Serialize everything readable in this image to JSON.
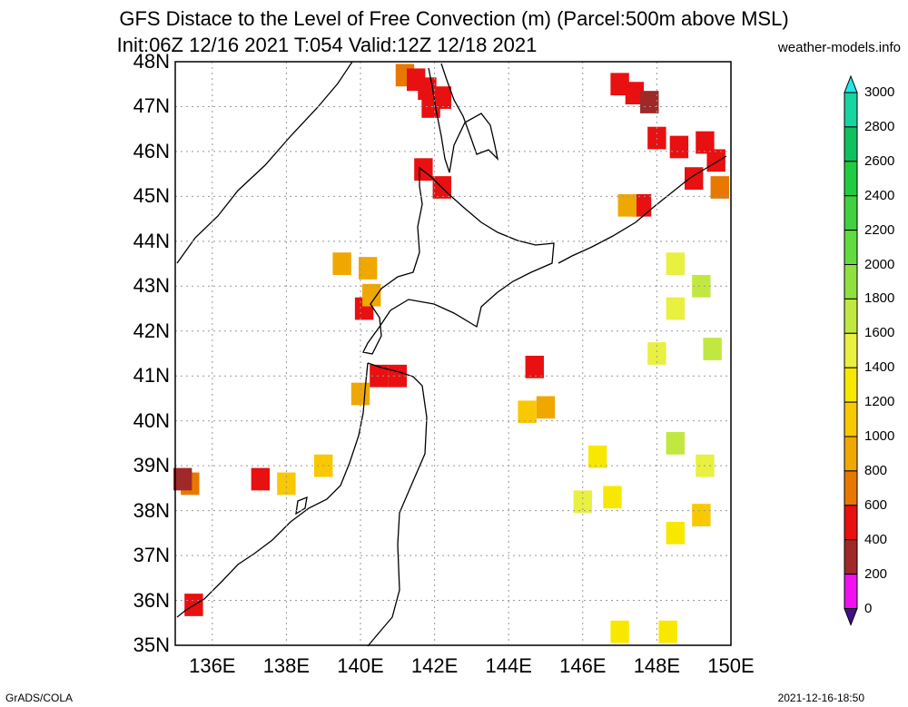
{
  "title_line1": "GFS Distace to the Level of Free Convection (m) (Parcel:500m above MSL)",
  "title_line2": "Init:06Z 12/16 2021 T:054 Valid:12Z 12/18 2021",
  "site": "weather-models.info",
  "footer_left": "GrADS/COLA",
  "footer_right": "2021-12-16-18:50",
  "lat_labels": [
    "48N",
    "47N",
    "46N",
    "45N",
    "44N",
    "43N",
    "42N",
    "41N",
    "40N",
    "39N",
    "38N",
    "37N",
    "36N",
    "35N"
  ],
  "lon_labels": [
    "136E",
    "138E",
    "140E",
    "142E",
    "144E",
    "146E",
    "148E",
    "150E"
  ],
  "colorbar": {
    "levels": [
      "3000",
      "2800",
      "2600",
      "2400",
      "2200",
      "2000",
      "1800",
      "1600",
      "1400",
      "1200",
      "1000",
      "800",
      "600",
      "400",
      "200",
      "0"
    ],
    "colors": [
      "#20e8e8",
      "#18d4a0",
      "#10c060",
      "#20cc40",
      "#40d040",
      "#60dc40",
      "#90e040",
      "#c0e840",
      "#e8f040",
      "#f8e800",
      "#f8c800",
      "#f0a800",
      "#e87800",
      "#e81010",
      "#a02828",
      "#f010f0",
      "#401088"
    ]
  },
  "map_data": {
    "lat_range": [
      35,
      48
    ],
    "lon_range": [
      135,
      150
    ],
    "fields": [
      {
        "lon": 141.2,
        "lat": 47.7,
        "v": 700
      },
      {
        "lon": 141.5,
        "lat": 47.6,
        "v": 500
      },
      {
        "lon": 141.8,
        "lat": 47.4,
        "v": 550
      },
      {
        "lon": 141.9,
        "lat": 47.0,
        "v": 560
      },
      {
        "lon": 142.2,
        "lat": 47.2,
        "v": 400
      },
      {
        "lon": 147.0,
        "lat": 47.5,
        "v": 400
      },
      {
        "lon": 147.4,
        "lat": 47.3,
        "v": 400
      },
      {
        "lon": 147.8,
        "lat": 47.1,
        "v": 200
      },
      {
        "lon": 148.0,
        "lat": 46.3,
        "v": 550
      },
      {
        "lon": 148.6,
        "lat": 46.1,
        "v": 550
      },
      {
        "lon": 149.3,
        "lat": 46.2,
        "v": 400
      },
      {
        "lon": 149.6,
        "lat": 45.8,
        "v": 550
      },
      {
        "lon": 149.7,
        "lat": 45.2,
        "v": 700
      },
      {
        "lon": 149.0,
        "lat": 45.4,
        "v": 550
      },
      {
        "lon": 141.7,
        "lat": 45.6,
        "v": 550
      },
      {
        "lon": 142.2,
        "lat": 45.2,
        "v": 550
      },
      {
        "lon": 140.1,
        "lat": 42.5,
        "v": 560
      },
      {
        "lon": 140.3,
        "lat": 42.8,
        "v": 800
      },
      {
        "lon": 139.5,
        "lat": 43.5,
        "v": 900
      },
      {
        "lon": 140.2,
        "lat": 43.4,
        "v": 850
      },
      {
        "lon": 140.5,
        "lat": 41.0,
        "v": 550
      },
      {
        "lon": 141.0,
        "lat": 41.0,
        "v": 550
      },
      {
        "lon": 147.6,
        "lat": 44.8,
        "v": 550
      },
      {
        "lon": 147.2,
        "lat": 44.8,
        "v": 900
      },
      {
        "lon": 148.5,
        "lat": 43.5,
        "v": 1500
      },
      {
        "lon": 149.2,
        "lat": 43.0,
        "v": 1600
      },
      {
        "lon": 148.5,
        "lat": 42.5,
        "v": 1550
      },
      {
        "lon": 149.5,
        "lat": 41.6,
        "v": 1600
      },
      {
        "lon": 148.0,
        "lat": 41.5,
        "v": 1500
      },
      {
        "lon": 148.5,
        "lat": 39.5,
        "v": 1600
      },
      {
        "lon": 149.3,
        "lat": 39.0,
        "v": 1550
      },
      {
        "lon": 145.0,
        "lat": 40.3,
        "v": 950
      },
      {
        "lon": 144.5,
        "lat": 40.2,
        "v": 1000
      },
      {
        "lon": 144.7,
        "lat": 41.2,
        "v": 550
      },
      {
        "lon": 140.0,
        "lat": 40.6,
        "v": 900
      },
      {
        "lon": 139.0,
        "lat": 39.0,
        "v": 1000
      },
      {
        "lon": 138.0,
        "lat": 38.6,
        "v": 1100
      },
      {
        "lon": 137.3,
        "lat": 38.7,
        "v": 550
      },
      {
        "lon": 135.4,
        "lat": 38.6,
        "v": 700
      },
      {
        "lon": 135.2,
        "lat": 38.7,
        "v": 200
      },
      {
        "lon": 135.5,
        "lat": 35.9,
        "v": 550
      },
      {
        "lon": 146.8,
        "lat": 38.3,
        "v": 1300
      },
      {
        "lon": 148.5,
        "lat": 37.5,
        "v": 1250
      },
      {
        "lon": 149.2,
        "lat": 37.9,
        "v": 1100
      },
      {
        "lon": 148.3,
        "lat": 35.3,
        "v": 1300
      },
      {
        "lon": 147.0,
        "lat": 35.3,
        "v": 1200
      },
      {
        "lon": 146.0,
        "lat": 38.2,
        "v": 1400
      },
      {
        "lon": 146.4,
        "lat": 39.2,
        "v": 1250
      }
    ]
  }
}
